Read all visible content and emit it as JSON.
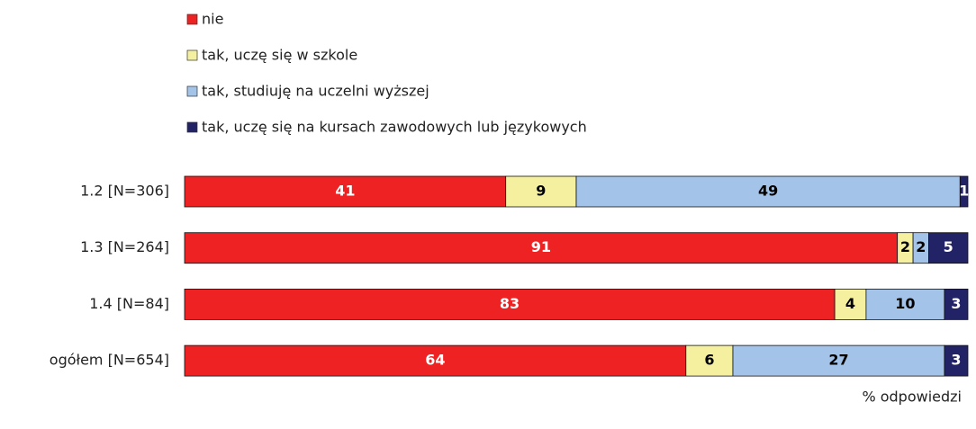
{
  "chart_data": {
    "type": "stacked_bar_horizontal",
    "x_label": "% odpowiedzi",
    "categories": [
      "1.2 [N=306]",
      "1.3 [N=264]",
      "1.4 [N=84]",
      "ogółem [N=654]"
    ],
    "series": [
      {
        "name": "nie",
        "color": "#ee2222",
        "label_color": "#ffffff",
        "values": [
          41,
          91,
          83,
          64
        ]
      },
      {
        "name": "tak, uczę się w szkole",
        "color": "#f5f0a0",
        "label_color": "#000000",
        "values": [
          9,
          2,
          4,
          6
        ]
      },
      {
        "name": "tak, studiuję na uczelni wyższej",
        "color": "#a3c4e8",
        "label_color": "#000000",
        "values": [
          49,
          2,
          10,
          27
        ]
      },
      {
        "name": "tak, uczę się na kursach zawodowych lub językowych",
        "color": "#222266",
        "label_color": "#ffffff",
        "values": [
          1,
          5,
          3,
          3
        ]
      }
    ],
    "xlim": [
      0,
      100
    ],
    "legend": "top"
  }
}
